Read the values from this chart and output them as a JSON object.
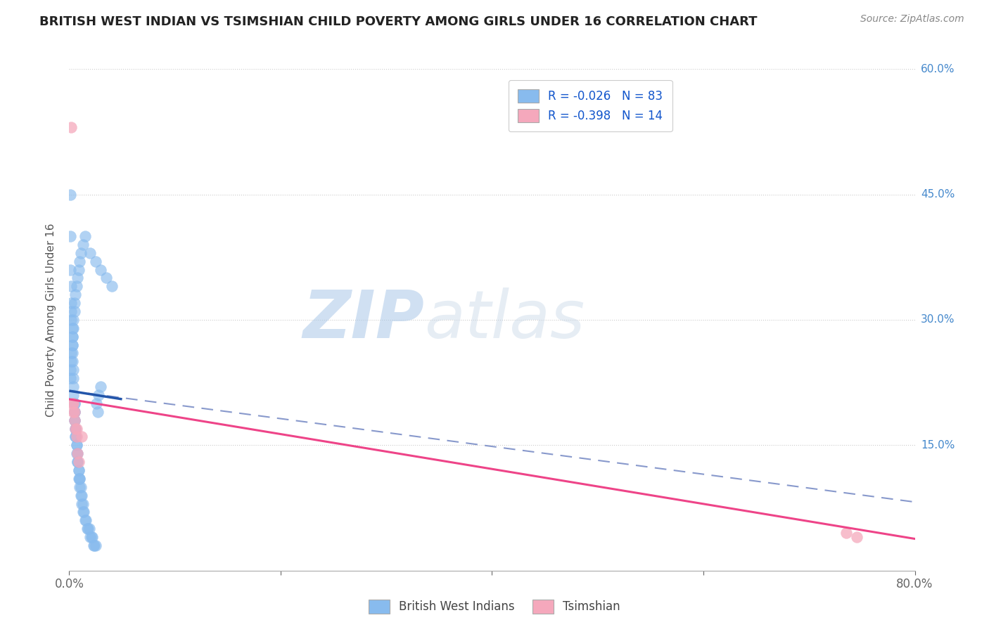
{
  "title": "BRITISH WEST INDIAN VS TSIMSHIAN CHILD POVERTY AMONG GIRLS UNDER 16 CORRELATION CHART",
  "source": "Source: ZipAtlas.com",
  "ylabel": "Child Poverty Among Girls Under 16",
  "xlim": [
    0.0,
    0.8
  ],
  "ylim": [
    0.0,
    0.6
  ],
  "blue_R": -0.026,
  "blue_N": 83,
  "pink_R": -0.398,
  "pink_N": 14,
  "blue_color": "#88bbee",
  "pink_color": "#f5a8bc",
  "blue_line_color": "#2255aa",
  "pink_line_color": "#ee4488",
  "dashed_line_color": "#8899cc",
  "watermark": "ZIPatlas",
  "background_color": "#ffffff",
  "blue_scatter_x": [
    0.001,
    0.001,
    0.001,
    0.002,
    0.002,
    0.002,
    0.002,
    0.003,
    0.003,
    0.003,
    0.003,
    0.003,
    0.004,
    0.004,
    0.004,
    0.004,
    0.005,
    0.005,
    0.005,
    0.005,
    0.005,
    0.005,
    0.006,
    0.006,
    0.006,
    0.006,
    0.007,
    0.007,
    0.007,
    0.008,
    0.008,
    0.008,
    0.009,
    0.009,
    0.009,
    0.01,
    0.01,
    0.01,
    0.011,
    0.011,
    0.012,
    0.012,
    0.013,
    0.013,
    0.014,
    0.015,
    0.016,
    0.017,
    0.018,
    0.019,
    0.02,
    0.021,
    0.022,
    0.023,
    0.024,
    0.025,
    0.026,
    0.027,
    0.028,
    0.03,
    0.001,
    0.001,
    0.002,
    0.002,
    0.003,
    0.003,
    0.004,
    0.004,
    0.005,
    0.005,
    0.006,
    0.007,
    0.008,
    0.009,
    0.01,
    0.011,
    0.013,
    0.015,
    0.02,
    0.025,
    0.03,
    0.035,
    0.04
  ],
  "blue_scatter_y": [
    0.45,
    0.4,
    0.36,
    0.34,
    0.32,
    0.31,
    0.3,
    0.29,
    0.28,
    0.27,
    0.26,
    0.25,
    0.24,
    0.23,
    0.22,
    0.21,
    0.2,
    0.2,
    0.19,
    0.19,
    0.18,
    0.18,
    0.17,
    0.17,
    0.16,
    0.16,
    0.15,
    0.15,
    0.14,
    0.14,
    0.13,
    0.13,
    0.12,
    0.12,
    0.11,
    0.11,
    0.11,
    0.1,
    0.1,
    0.09,
    0.09,
    0.08,
    0.08,
    0.07,
    0.07,
    0.06,
    0.06,
    0.05,
    0.05,
    0.05,
    0.04,
    0.04,
    0.04,
    0.03,
    0.03,
    0.03,
    0.2,
    0.19,
    0.21,
    0.22,
    0.23,
    0.24,
    0.25,
    0.26,
    0.27,
    0.28,
    0.29,
    0.3,
    0.31,
    0.32,
    0.33,
    0.34,
    0.35,
    0.36,
    0.37,
    0.38,
    0.39,
    0.4,
    0.38,
    0.37,
    0.36,
    0.35,
    0.34
  ],
  "pink_scatter_x": [
    0.002,
    0.003,
    0.004,
    0.004,
    0.005,
    0.005,
    0.006,
    0.007,
    0.007,
    0.008,
    0.009,
    0.012,
    0.735,
    0.745
  ],
  "pink_scatter_y": [
    0.53,
    0.2,
    0.2,
    0.19,
    0.19,
    0.18,
    0.17,
    0.17,
    0.16,
    0.14,
    0.13,
    0.16,
    0.045,
    0.04
  ],
  "blue_line_x": [
    0.0,
    0.05
  ],
  "blue_line_y": [
    0.215,
    0.205
  ],
  "dashed_line_x": [
    0.0,
    0.8
  ],
  "dashed_line_y": [
    0.215,
    0.082
  ],
  "pink_line_x": [
    0.0,
    0.8
  ],
  "pink_line_y": [
    0.205,
    0.038
  ]
}
